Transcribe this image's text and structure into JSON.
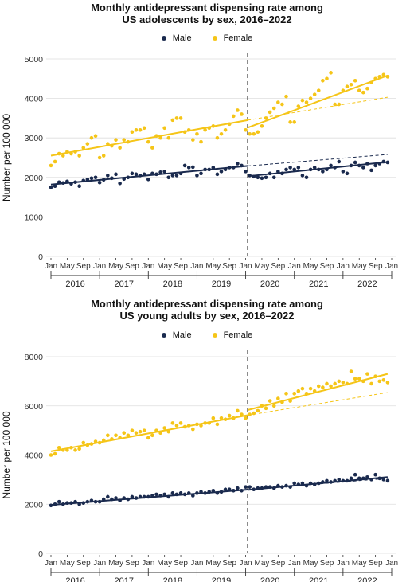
{
  "colors": {
    "male": "#1a2a4e",
    "female": "#f5c518",
    "divider": "#555555",
    "grid": "#dddddd"
  },
  "legend": {
    "male": "Male",
    "female": "Female"
  },
  "month_ticks": [
    "Jan",
    "May",
    "Sep",
    "Jan",
    "May",
    "Sep",
    "Jan",
    "May",
    "Sep",
    "Jan",
    "May",
    "Sep",
    "Jan",
    "May",
    "Sep",
    "Jan",
    "May",
    "Sep",
    "Jan",
    "May",
    "Sep",
    "Jan"
  ],
  "year_labels": [
    "2016",
    "2017",
    "2018",
    "2019",
    "2020",
    "2021",
    "2022"
  ],
  "chart_data": [
    {
      "type": "scatter",
      "title_line1": "Monthly antidepressant dispensing rate among",
      "title_line2": "US adolescents by sex, 2016–2022",
      "ylabel": "Number per 100 000",
      "ylim": [
        0,
        5000
      ],
      "yticks": [
        0,
        1000,
        2000,
        3000,
        4000,
        5000
      ],
      "x_unit": "months since Jan 2016",
      "divider_month": 48.5,
      "series": [
        {
          "name": "Male",
          "values": [
            1750,
            1780,
            1880,
            1860,
            1900,
            1840,
            1880,
            1780,
            1920,
            1950,
            1980,
            2000,
            1870,
            1940,
            2050,
            1980,
            2080,
            1850,
            1960,
            2000,
            2100,
            2080,
            2050,
            2080,
            1950,
            2100,
            2080,
            2130,
            2150,
            2000,
            2050,
            2050,
            2100,
            2300,
            2250,
            2260,
            2050,
            2100,
            2200,
            2200,
            2250,
            2080,
            2150,
            2200,
            2250,
            2250,
            2350,
            2300,
            2150,
            2050,
            2020,
            2000,
            1980,
            2000,
            2100,
            2000,
            2150,
            2100,
            2200,
            2250,
            2200,
            2250,
            2050,
            2000,
            2200,
            2250,
            2200,
            2150,
            2200,
            2300,
            2250,
            2400,
            2150,
            2100,
            2300,
            2380,
            2300,
            2250,
            2350,
            2180,
            2300,
            2350,
            2400,
            2380
          ],
          "fit_pre": [
            1820,
            2290
          ],
          "fit_post": [
            2030,
            2390
          ],
          "counterfactual": [
            2290,
            2580
          ]
        },
        {
          "name": "Female",
          "values": [
            2300,
            2400,
            2600,
            2550,
            2650,
            2600,
            2650,
            2550,
            2750,
            2850,
            3000,
            3050,
            2500,
            2550,
            2850,
            2800,
            2950,
            2750,
            2950,
            2900,
            3150,
            3200,
            3200,
            3250,
            2900,
            2750,
            3050,
            3000,
            3250,
            3000,
            3450,
            3500,
            3500,
            3150,
            3200,
            2950,
            3100,
            2900,
            3200,
            3250,
            3300,
            3000,
            3100,
            3200,
            3350,
            3550,
            3700,
            3600,
            3200,
            3100,
            3100,
            3150,
            3300,
            3500,
            3650,
            3750,
            3900,
            3850,
            4050,
            3400,
            3400,
            3800,
            3950,
            3900,
            4000,
            4100,
            4200,
            4450,
            4500,
            4650,
            3850,
            3850,
            4200,
            4300,
            4350,
            4450,
            4200,
            4150,
            4250,
            4400,
            4500,
            4550,
            4600,
            4550
          ],
          "fit_pre": [
            2550,
            3450
          ],
          "fit_post": [
            3260,
            4580
          ],
          "counterfactual": [
            3450,
            4030
          ]
        }
      ]
    },
    {
      "type": "scatter",
      "title_line1": "Monthly antidepressant dispensing rate among",
      "title_line2": "US young adults by sex, 2016–2022",
      "ylabel": "Number per 100 000",
      "ylim": [
        0,
        8000
      ],
      "yticks": [
        0,
        2000,
        4000,
        6000,
        8000
      ],
      "x_unit": "months since Jan 2016",
      "divider_month": 48.5,
      "series": [
        {
          "name": "Male",
          "values": [
            1950,
            2000,
            2100,
            2000,
            2050,
            2050,
            2100,
            2000,
            2050,
            2100,
            2150,
            2100,
            2100,
            2200,
            2300,
            2200,
            2250,
            2150,
            2250,
            2200,
            2300,
            2250,
            2300,
            2300,
            2300,
            2350,
            2400,
            2350,
            2400,
            2300,
            2450,
            2400,
            2450,
            2400,
            2450,
            2350,
            2450,
            2500,
            2450,
            2500,
            2550,
            2450,
            2500,
            2600,
            2600,
            2550,
            2650,
            2550,
            2700,
            2700,
            2600,
            2650,
            2650,
            2700,
            2700,
            2650,
            2750,
            2700,
            2750,
            2700,
            2850,
            2800,
            2850,
            2750,
            2850,
            2800,
            2850,
            2900,
            2950,
            2900,
            2950,
            3000,
            2950,
            2950,
            3050,
            3200,
            3050,
            3050,
            3100,
            3000,
            3200,
            3050,
            3000,
            2950
          ],
          "fit_pre": [
            1970,
            2590
          ],
          "fit_post": [
            2580,
            3100
          ],
          "counterfactual": [
            2590,
            3050
          ]
        },
        {
          "name": "Female",
          "values": [
            4000,
            4050,
            4300,
            4200,
            4200,
            4300,
            4200,
            4250,
            4500,
            4400,
            4450,
            4550,
            4500,
            4600,
            4800,
            4650,
            4800,
            4700,
            4900,
            4800,
            5000,
            4900,
            4950,
            5000,
            4700,
            4800,
            5000,
            4900,
            5100,
            4950,
            5300,
            5200,
            5300,
            5150,
            5200,
            5050,
            5250,
            5200,
            5300,
            5300,
            5500,
            5250,
            5500,
            5450,
            5600,
            5500,
            5800,
            5650,
            5500,
            5650,
            5700,
            5800,
            6000,
            5900,
            6200,
            6000,
            6300,
            6150,
            6500,
            6200,
            6500,
            6600,
            6700,
            6500,
            6700,
            6600,
            6800,
            6750,
            6900,
            6800,
            6900,
            7000,
            6950,
            6900,
            7400,
            7100,
            7100,
            7000,
            7300,
            6900,
            7200,
            7000,
            7050,
            6950
          ],
          "fit_pre": [
            4150,
            5620
          ],
          "fit_post": [
            5830,
            7300
          ],
          "counterfactual": [
            5620,
            6540
          ]
        }
      ]
    }
  ]
}
